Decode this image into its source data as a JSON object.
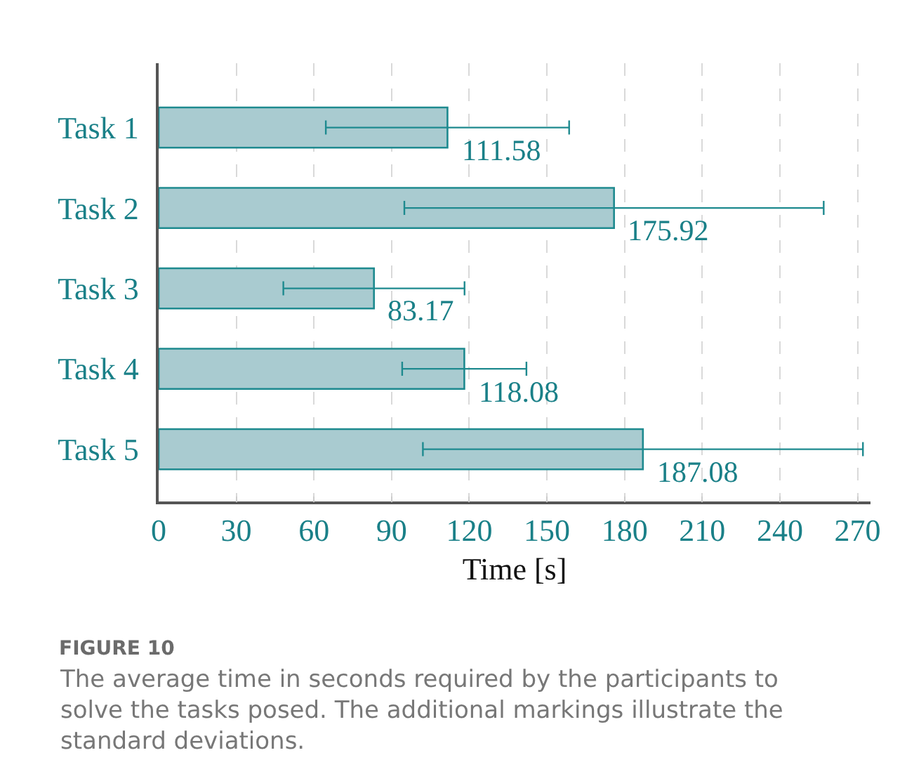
{
  "chart_data": {
    "type": "bar",
    "orientation": "horizontal",
    "categories": [
      "Task 1",
      "Task 2",
      "Task 3",
      "Task 4",
      "Task 5"
    ],
    "values": [
      111.58,
      175.92,
      83.17,
      118.08,
      187.08
    ],
    "errors": [
      47,
      81,
      35,
      24,
      85
    ],
    "color": "#a9cbd0",
    "data_labels": true,
    "xlabel": "Time [s]",
    "xlim": [
      0,
      275
    ],
    "xticks": [
      0,
      30,
      60,
      90,
      120,
      150,
      180,
      210,
      240,
      270
    ],
    "grid": "x",
    "annotations": [
      "FIGURE 10",
      "The average time in seconds required by the participants to solve the tasks posed. The additional markings illustrate the standard deviations."
    ]
  }
}
